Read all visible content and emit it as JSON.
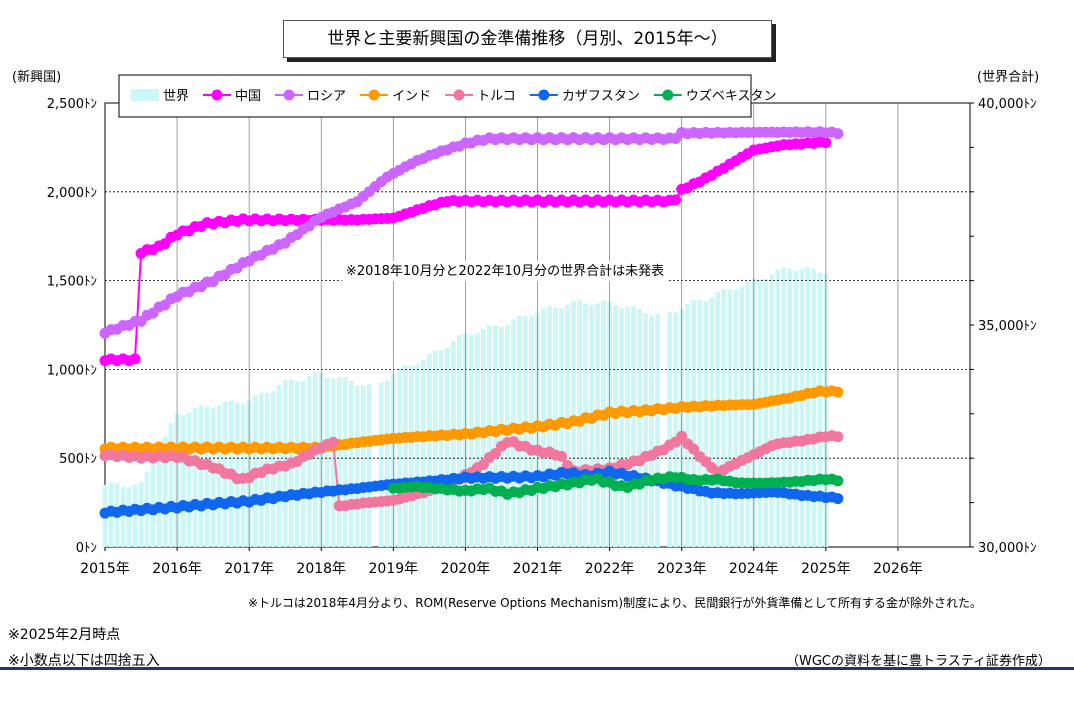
{
  "chart_data": {
    "type": "line",
    "title": "世界と主要新興国の金準備推移（月別、2015年～）",
    "ylabel_left": "(新興国)",
    "ylabel_right": "(世界合計)",
    "x_ticks": [
      "2015年",
      "2016年",
      "2017年",
      "2018年",
      "2019年",
      "2020年",
      "2021年",
      "2022年",
      "2023年",
      "2024年",
      "2025年",
      "2026年"
    ],
    "y_left_ticks": [
      "0ﾄﾝ",
      "500ﾄﾝ",
      "1,000ﾄﾝ",
      "1,500ﾄﾝ",
      "2,000ﾄﾝ",
      "2,500ﾄﾝ"
    ],
    "y_right_ticks": [
      "30,000ﾄﾝ",
      "35,000ﾄﾝ",
      "40,000ﾄﾝ"
    ],
    "ylim_left": [
      0,
      2500
    ],
    "ylim_right": [
      30000,
      40000
    ],
    "xlim": [
      2015.0,
      2027.0
    ],
    "grid": "horizontal and vertical",
    "legend_position": "top-left",
    "annotation_gap": "※2018年10月分と2022年10月分の世界合計は未発表",
    "series": [
      {
        "name": "世界",
        "kind": "bar",
        "axis": "right",
        "color": "#ccf7f7",
        "points": [
          [
            2015.0,
            31400
          ],
          [
            2015.5,
            31400
          ],
          [
            2016.0,
            33000
          ],
          [
            2016.5,
            33200
          ],
          [
            2017.0,
            33300
          ],
          [
            2017.5,
            33700
          ],
          [
            2018.0,
            33900
          ],
          [
            2018.5,
            33700
          ],
          [
            2018.75,
            33600
          ],
          [
            2019.0,
            33900
          ],
          [
            2019.5,
            34300
          ],
          [
            2020.0,
            34800
          ],
          [
            2020.5,
            35000
          ],
          [
            2021.0,
            35300
          ],
          [
            2021.5,
            35500
          ],
          [
            2022.0,
            35500
          ],
          [
            2022.5,
            35300
          ],
          [
            2022.75,
            35200
          ],
          [
            2023.0,
            35400
          ],
          [
            2023.5,
            35700
          ],
          [
            2024.0,
            36000
          ],
          [
            2024.5,
            36300
          ],
          [
            2025.0,
            36200
          ]
        ],
        "gaps": [
          2018.75,
          2022.75
        ]
      },
      {
        "name": "中国",
        "color": "#ff00ff",
        "points": [
          [
            2015.0,
            1054
          ],
          [
            2015.45,
            1054
          ],
          [
            2015.5,
            1658
          ],
          [
            2015.75,
            1690
          ],
          [
            2016.0,
            1762
          ],
          [
            2016.4,
            1820
          ],
          [
            2016.9,
            1842
          ],
          [
            2017.5,
            1842
          ],
          [
            2018.5,
            1842
          ],
          [
            2019.0,
            1852
          ],
          [
            2019.5,
            1920
          ],
          [
            2019.75,
            1948
          ],
          [
            2020.5,
            1948
          ],
          [
            2021.5,
            1948
          ],
          [
            2022.5,
            1948
          ],
          [
            2022.9,
            1948
          ],
          [
            2023.0,
            2010
          ],
          [
            2023.3,
            2068
          ],
          [
            2023.6,
            2138
          ],
          [
            2024.0,
            2235
          ],
          [
            2024.4,
            2264
          ],
          [
            2025.0,
            2280
          ]
        ]
      },
      {
        "name": "ロシア",
        "color": "#cc66ff",
        "points": [
          [
            2015.0,
            1208
          ],
          [
            2015.5,
            1276
          ],
          [
            2016.0,
            1415
          ],
          [
            2016.5,
            1500
          ],
          [
            2017.0,
            1615
          ],
          [
            2017.5,
            1715
          ],
          [
            2018.0,
            1858
          ],
          [
            2018.5,
            1945
          ],
          [
            2018.9,
            2080
          ],
          [
            2019.3,
            2170
          ],
          [
            2019.6,
            2219
          ],
          [
            2020.0,
            2271
          ],
          [
            2020.3,
            2299
          ],
          [
            2021.0,
            2299
          ],
          [
            2022.0,
            2299
          ],
          [
            2022.9,
            2299
          ],
          [
            2023.0,
            2330
          ],
          [
            2024.0,
            2335
          ],
          [
            2024.5,
            2336
          ],
          [
            2025.0,
            2335
          ],
          [
            2025.2,
            2330
          ]
        ]
      },
      {
        "name": "インド",
        "color": "#ff9900",
        "points": [
          [
            2015.0,
            557
          ],
          [
            2016.0,
            557
          ],
          [
            2017.0,
            557
          ],
          [
            2017.8,
            558
          ],
          [
            2018.0,
            560
          ],
          [
            2018.5,
            588
          ],
          [
            2019.0,
            612
          ],
          [
            2019.5,
            625
          ],
          [
            2020.0,
            636
          ],
          [
            2020.5,
            658
          ],
          [
            2021.0,
            677
          ],
          [
            2021.5,
            705
          ],
          [
            2022.0,
            755
          ],
          [
            2022.5,
            768
          ],
          [
            2023.0,
            787
          ],
          [
            2023.5,
            797
          ],
          [
            2024.0,
            803
          ],
          [
            2024.5,
            840
          ],
          [
            2024.9,
            876
          ],
          [
            2025.2,
            876
          ]
        ]
      },
      {
        "name": "トルコ",
        "color": "#f1779f",
        "points": [
          [
            2015.0,
            518
          ],
          [
            2015.5,
            505
          ],
          [
            2016.0,
            510
          ],
          [
            2016.5,
            450
          ],
          [
            2016.9,
            378
          ],
          [
            2017.2,
            430
          ],
          [
            2017.6,
            470
          ],
          [
            2017.9,
            540
          ],
          [
            2018.2,
            598
          ],
          [
            2018.25,
            230
          ],
          [
            2018.6,
            248
          ],
          [
            2019.0,
            262
          ],
          [
            2019.5,
            316
          ],
          [
            2019.8,
            360
          ],
          [
            2020.2,
            450
          ],
          [
            2020.6,
            600
          ],
          [
            2020.8,
            565
          ],
          [
            2021.0,
            540
          ],
          [
            2021.3,
            520
          ],
          [
            2021.5,
            425
          ],
          [
            2022.0,
            440
          ],
          [
            2022.4,
            487
          ],
          [
            2022.8,
            560
          ],
          [
            2023.0,
            620
          ],
          [
            2023.3,
            490
          ],
          [
            2023.5,
            420
          ],
          [
            2023.9,
            500
          ],
          [
            2024.3,
            580
          ],
          [
            2024.7,
            600
          ],
          [
            2025.0,
            623
          ],
          [
            2025.2,
            625
          ]
        ]
      },
      {
        "name": "カザフスタン",
        "color": "#1166ee",
        "points": [
          [
            2015.0,
            195
          ],
          [
            2015.5,
            210
          ],
          [
            2016.0,
            225
          ],
          [
            2016.5,
            243
          ],
          [
            2017.0,
            258
          ],
          [
            2017.5,
            287
          ],
          [
            2018.0,
            310
          ],
          [
            2018.5,
            330
          ],
          [
            2018.9,
            350
          ],
          [
            2019.5,
            370
          ],
          [
            2020.0,
            390
          ],
          [
            2020.5,
            392
          ],
          [
            2021.0,
            396
          ],
          [
            2021.4,
            418
          ],
          [
            2021.7,
            400
          ],
          [
            2022.0,
            422
          ],
          [
            2022.3,
            400
          ],
          [
            2022.6,
            375
          ],
          [
            2023.0,
            340
          ],
          [
            2023.4,
            305
          ],
          [
            2023.8,
            300
          ],
          [
            2024.3,
            310
          ],
          [
            2024.7,
            290
          ],
          [
            2025.2,
            275
          ]
        ]
      },
      {
        "name": "ウズベキスタン",
        "color": "#00b050",
        "points": [
          [
            2019.0,
            330
          ],
          [
            2019.3,
            340
          ],
          [
            2019.6,
            330
          ],
          [
            2020.0,
            315
          ],
          [
            2020.3,
            330
          ],
          [
            2020.6,
            300
          ],
          [
            2021.0,
            330
          ],
          [
            2021.5,
            360
          ],
          [
            2021.8,
            385
          ],
          [
            2022.2,
            335
          ],
          [
            2022.6,
            380
          ],
          [
            2022.9,
            395
          ],
          [
            2023.2,
            375
          ],
          [
            2023.5,
            380
          ],
          [
            2023.8,
            360
          ],
          [
            2024.2,
            360
          ],
          [
            2024.6,
            368
          ],
          [
            2025.0,
            382
          ],
          [
            2025.2,
            375
          ]
        ]
      }
    ]
  },
  "notes": {
    "turkey": "※トルコは2018年4月分より、ROM(Reserve Options Mechanism)制度により、民間銀行が外貨準備として所有する金が除外された。",
    "as_of": "※2025年2月時点",
    "rounding": "※小数点以下は四捨五入",
    "source": "（WGCの資料を基に豊トラスティ証券作成）"
  }
}
